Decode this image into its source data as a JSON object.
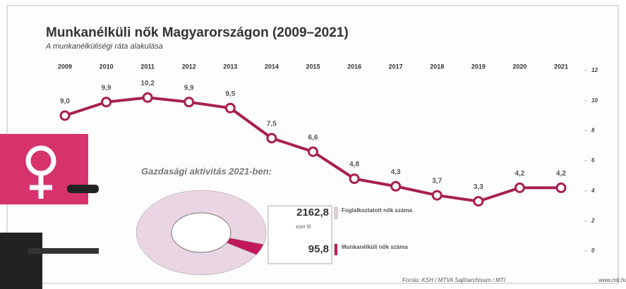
{
  "chart_data": [
    {
      "type": "line",
      "title": "Munkanélküli nők Magyarországon (2009–2021)",
      "subtitle": "A munkanélküliségi ráta alakulása",
      "categories": [
        "2009",
        "2010",
        "2011",
        "2012",
        "2013",
        "2014",
        "2015",
        "2016",
        "2017",
        "2018",
        "2019",
        "2020",
        "2021"
      ],
      "values": [
        9.0,
        9.9,
        10.2,
        9.9,
        9.5,
        7.5,
        6.6,
        4.8,
        4.3,
        3.7,
        3.3,
        4.2,
        4.2
      ],
      "value_labels": [
        "9,0",
        "9,9",
        "10,2",
        "9,9",
        "9,5",
        "7,5",
        "6,6",
        "4,8",
        "4,3",
        "3,7",
        "3,3",
        "4,2",
        "4,2"
      ],
      "color": "#a8204f",
      "ylim": [
        0,
        12
      ],
      "yticks": [
        0,
        2,
        4,
        6,
        8,
        10,
        12
      ]
    },
    {
      "type": "pie",
      "title": "Gazdasági aktivitás 2021-ben:",
      "categories": [
        "Foglalkoztatott nők száma",
        "Munkanélküli nők száma"
      ],
      "values": [
        2162.8,
        95.8
      ],
      "value_labels": [
        "2162,8",
        "95,8"
      ],
      "unit": "ezer fő",
      "colors": [
        "#e9d6e2",
        "#c2185b"
      ],
      "source": "Forrás: KSH / MTVA Sajtóarchívum / MTI",
      "website": "www.mti.hu"
    }
  ]
}
